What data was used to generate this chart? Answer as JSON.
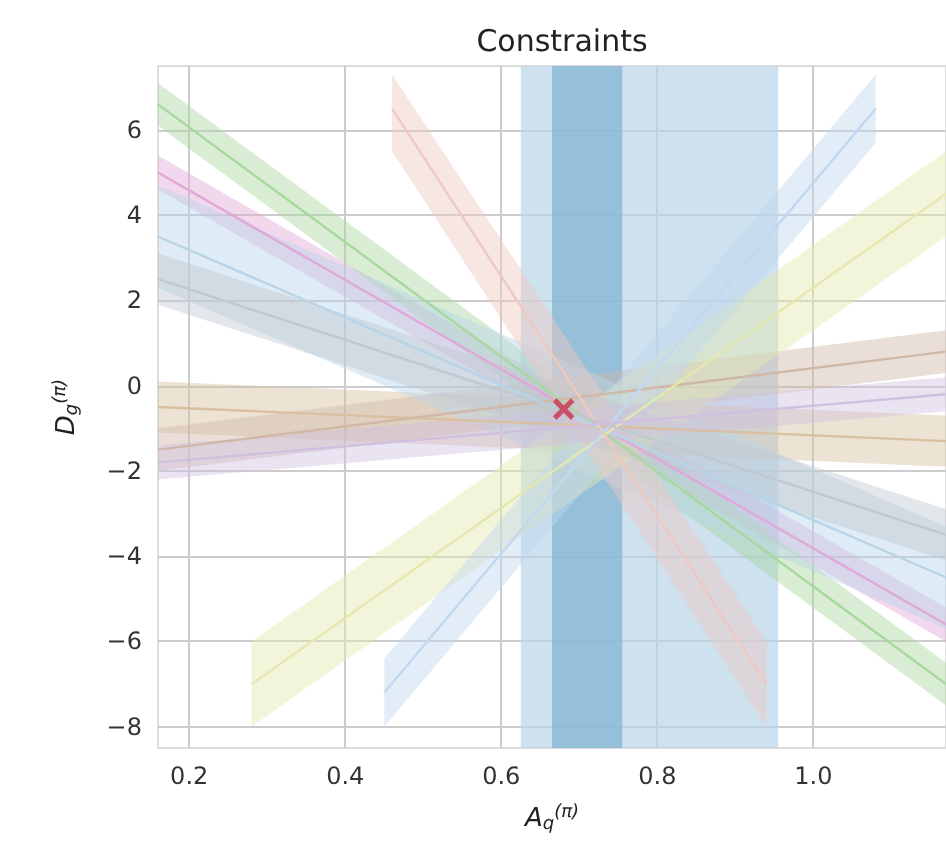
{
  "chart_data": {
    "type": "line",
    "title": "Constraints",
    "xlabel": "A$_{q}$$^{(π)}$",
    "ylabel": "D$_{g}$$^{(π)}$",
    "xlim": [
      0.16,
      1.17
    ],
    "ylim": [
      -8.5,
      7.5
    ],
    "xticks": [
      {
        "value": 0.2,
        "label": "0.2"
      },
      {
        "value": 0.4,
        "label": "0.4"
      },
      {
        "value": 0.6,
        "label": "0.6"
      },
      {
        "value": 0.8,
        "label": "0.8"
      },
      {
        "value": 1.0,
        "label": "1.0"
      }
    ],
    "yticks": [
      -8,
      -6,
      -4,
      -2,
      0,
      2,
      4,
      6
    ],
    "grid": true,
    "marker": "none",
    "series": [
      {
        "color": "#e0a8d8",
        "x": [
          0.16,
          1.17
        ],
        "values": [
          5.0,
          -5.6
        ],
        "lower": [
          4.6,
          -6.0
        ],
        "upper": [
          5.4,
          -5.2
        ]
      },
      {
        "color": "#a8d8a0",
        "x": [
          0.16,
          1.17
        ],
        "values": [
          6.6,
          -7.0
        ],
        "lower": [
          6.1,
          -7.5
        ],
        "upper": [
          7.1,
          -6.5
        ]
      },
      {
        "color": "#d8c0a0",
        "x": [
          0.16,
          1.17
        ],
        "values": [
          -0.5,
          -1.3
        ],
        "lower": [
          -1.1,
          -1.9
        ],
        "upper": [
          0.1,
          -0.7
        ]
      },
      {
        "color": "#d0b8a8",
        "x": [
          0.16,
          1.17
        ],
        "values": [
          -1.5,
          0.8
        ],
        "lower": [
          -2.0,
          0.3
        ],
        "upper": [
          -1.0,
          1.3
        ]
      },
      {
        "color": "#b8d4e8",
        "x": [
          0.16,
          1.17
        ],
        "values": [
          3.5,
          -4.5
        ],
        "lower": [
          2.3,
          -5.7
        ],
        "upper": [
          4.7,
          -3.3
        ]
      },
      {
        "color": "#e4e8b0",
        "x": [
          0.28,
          1.17
        ],
        "values": [
          -7.0,
          4.5
        ],
        "lower": [
          -8.0,
          3.5
        ],
        "upper": [
          -6.0,
          5.5
        ]
      },
      {
        "color": "#c0d8f0",
        "x": [
          0.45,
          1.08
        ],
        "values": [
          -7.2,
          6.5
        ],
        "lower": [
          -8.0,
          5.7
        ],
        "upper": [
          -6.4,
          7.3
        ]
      },
      {
        "color": "#f0c8c0",
        "x": [
          0.46,
          0.94
        ],
        "values": [
          6.5,
          -7.0
        ],
        "lower": [
          5.5,
          -8.0
        ],
        "upper": [
          7.3,
          -6.0
        ]
      },
      {
        "color": "#c0c8d0",
        "x": [
          0.16,
          1.17
        ],
        "values": [
          2.5,
          -3.5
        ],
        "lower": [
          1.9,
          -4.1
        ],
        "upper": [
          3.1,
          -2.9
        ]
      },
      {
        "color": "#d0c0e0",
        "x": [
          0.16,
          1.17
        ],
        "values": [
          -1.8,
          -0.2
        ],
        "lower": [
          -2.2,
          -0.6
        ],
        "upper": [
          -1.4,
          0.2
        ]
      },
      {
        "type": "scatter",
        "marker": "cross",
        "color": "#c8324a",
        "x": [
          0.68
        ],
        "values": [
          -0.55
        ]
      }
    ],
    "bands": [
      {
        "axis": "x",
        "from": 0.625,
        "to": 0.955,
        "color": "#b8d4e8"
      },
      {
        "axis": "x",
        "from": 0.665,
        "to": 0.755,
        "color": "#7fb0d0"
      }
    ]
  }
}
